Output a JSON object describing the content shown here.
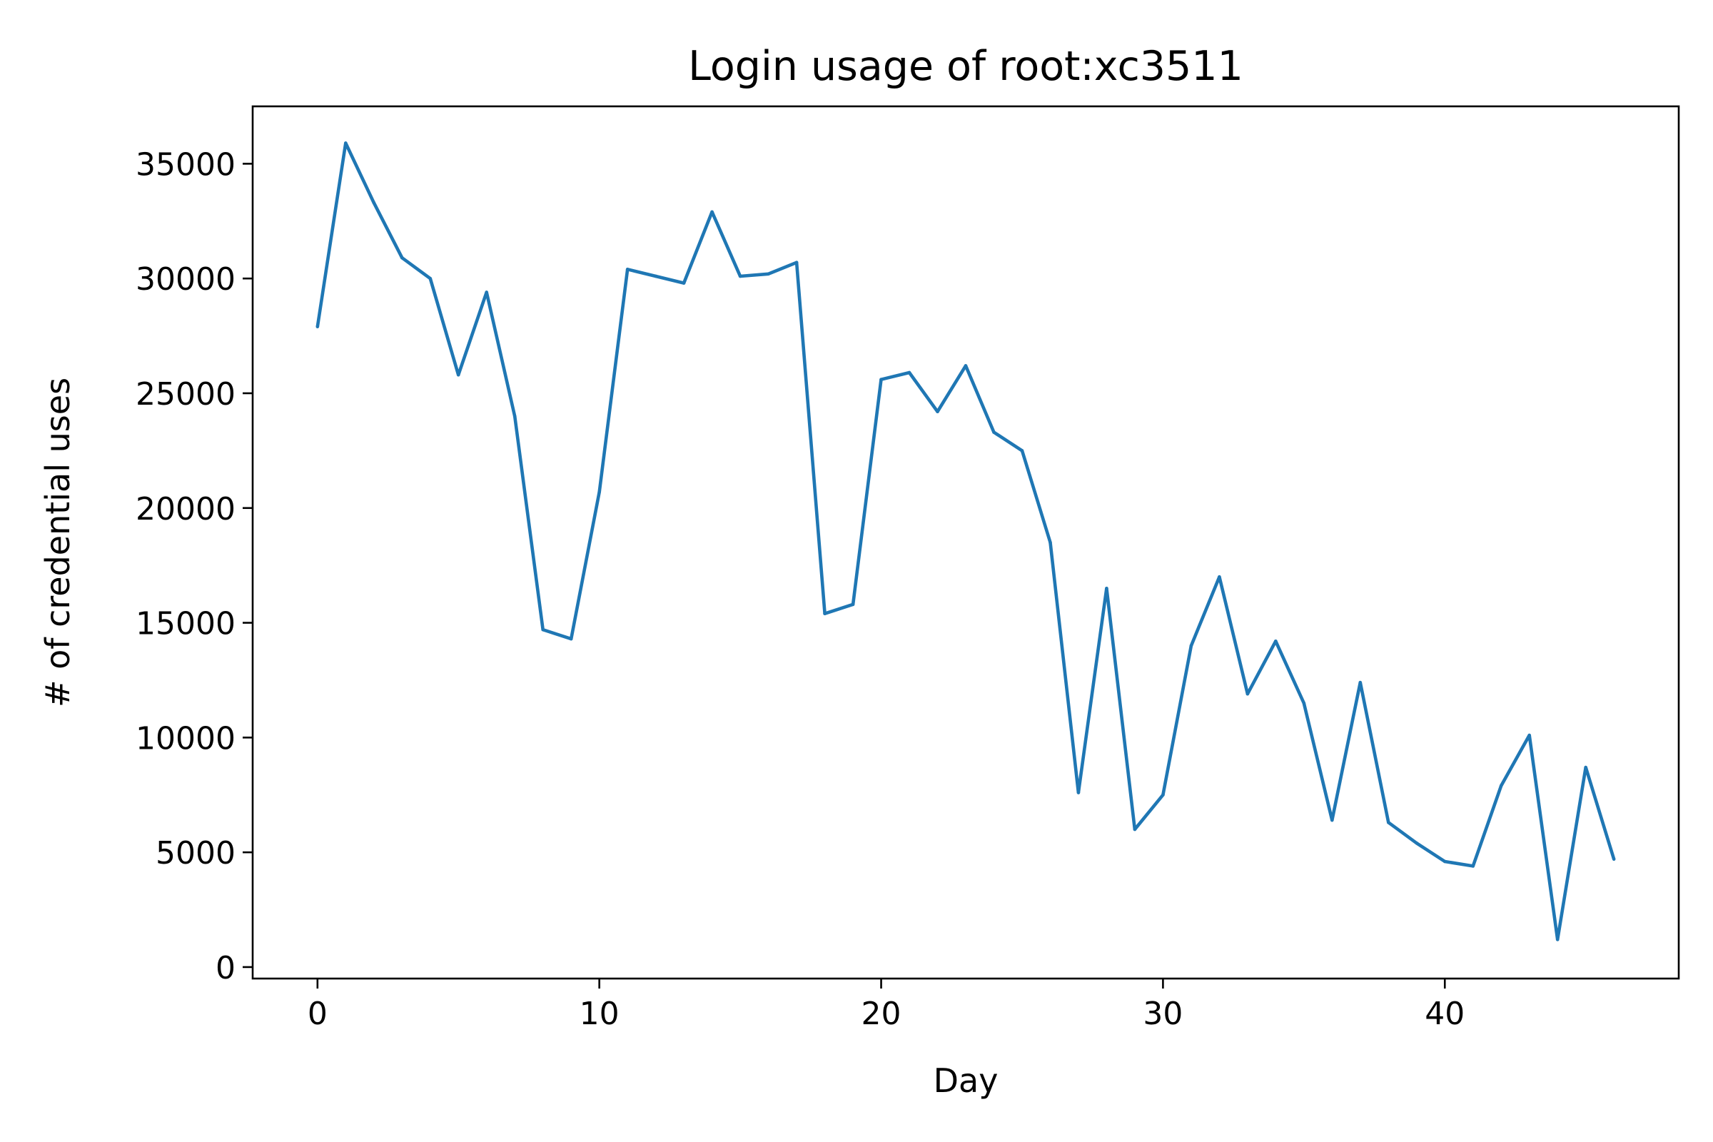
{
  "chart_data": {
    "type": "line",
    "title": "Login usage of root:xc3511",
    "xlabel": "Day",
    "ylabel": "# of credential uses",
    "xlim": [
      -2.3,
      48.3
    ],
    "ylim": [
      -500,
      37500
    ],
    "xticks": [
      0,
      10,
      20,
      30,
      40
    ],
    "yticks": [
      0,
      5000,
      10000,
      15000,
      20000,
      25000,
      30000,
      35000
    ],
    "grid": false,
    "line_color": "#1f77b4",
    "series": [
      {
        "x": [
          0,
          1,
          2,
          3,
          4,
          5,
          6,
          7,
          8,
          9,
          10,
          11,
          12,
          13,
          14,
          15,
          16,
          17,
          18,
          19,
          20,
          21,
          22,
          23,
          24,
          25,
          26,
          27,
          28,
          29,
          30,
          31,
          32,
          33,
          34,
          35,
          36,
          37,
          38,
          39,
          40,
          41,
          42,
          43,
          44,
          45,
          46
        ],
        "values": [
          27900,
          35900,
          33300,
          30900,
          30000,
          25800,
          29400,
          24000,
          14700,
          14300,
          20700,
          30400,
          30100,
          29800,
          32900,
          30100,
          30200,
          30700,
          15400,
          15800,
          25600,
          25900,
          24200,
          26200,
          23300,
          22500,
          18500,
          7600,
          16500,
          6000,
          7500,
          14000,
          17000,
          11900,
          14200,
          11500,
          6400,
          12400,
          6300,
          5400,
          4600,
          4400,
          7900,
          10100,
          1200,
          8700,
          4700
        ]
      }
    ]
  }
}
